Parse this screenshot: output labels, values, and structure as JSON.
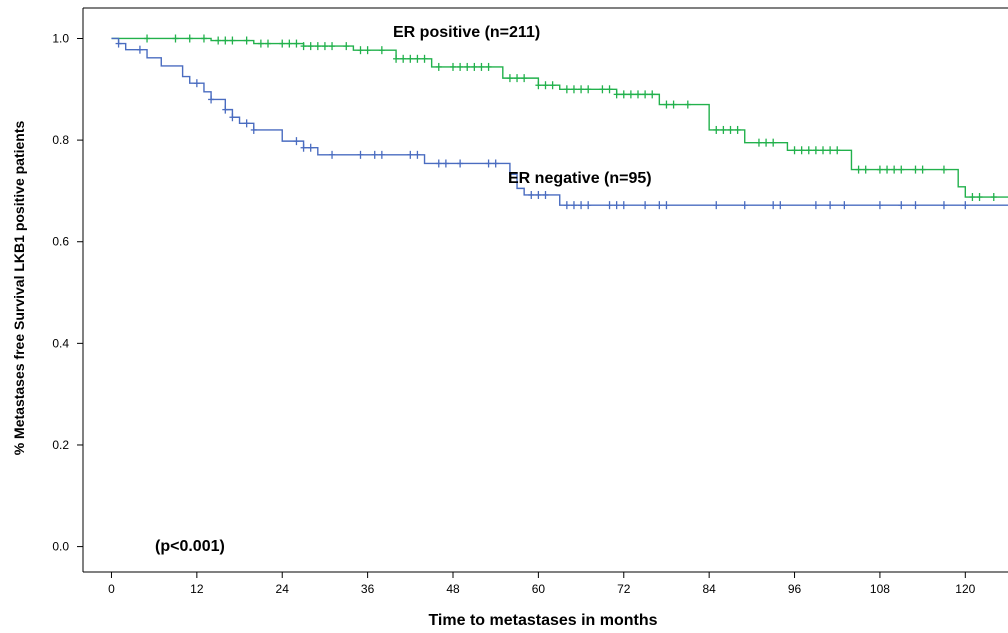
{
  "chart_data": {
    "type": "line",
    "xlabel": "Time to metastases in months",
    "ylabel": "% Metastases free Survival LKB1 positive patients",
    "xlim": [
      -4,
      126
    ],
    "ylim": [
      -0.05,
      1.06
    ],
    "xticks": [
      0,
      12,
      24,
      36,
      48,
      60,
      72,
      84,
      96,
      108,
      120
    ],
    "yticks": [
      0.0,
      0.2,
      0.4,
      0.6,
      0.8,
      1.0
    ],
    "ytick_labels": [
      "0.0",
      "0.2",
      "0.4",
      "0.6",
      "0.8",
      "1.0"
    ],
    "grid": false,
    "annotations": {
      "er_positive": "ER positive (n=211)",
      "er_negative": "ER negative (n=95)",
      "p_value": "(p<0.001)"
    },
    "series": [
      {
        "name": "ER positive (n=211)",
        "color": "#22b14c",
        "steps": [
          [
            0,
            1.0
          ],
          [
            14,
            0.996
          ],
          [
            20,
            0.99
          ],
          [
            27,
            0.985
          ],
          [
            34,
            0.977
          ],
          [
            40,
            0.96
          ],
          [
            45,
            0.944
          ],
          [
            55,
            0.922
          ],
          [
            60,
            0.908
          ],
          [
            63,
            0.9
          ],
          [
            71,
            0.89
          ],
          [
            77,
            0.87
          ],
          [
            84,
            0.82
          ],
          [
            89,
            0.795
          ],
          [
            95,
            0.78
          ],
          [
            104,
            0.742
          ],
          [
            119,
            0.708
          ],
          [
            120,
            0.688
          ],
          [
            126,
            0.688
          ]
        ],
        "censored": [
          5,
          9,
          11,
          13,
          15,
          16,
          17,
          19,
          21,
          22,
          24,
          25,
          26,
          27,
          28,
          29,
          30,
          31,
          33,
          35,
          36,
          38,
          40,
          41,
          42,
          43,
          44,
          46,
          48,
          49,
          50,
          51,
          52,
          53,
          56,
          57,
          58,
          60,
          61,
          62,
          64,
          65,
          66,
          67,
          69,
          70,
          71,
          72,
          73,
          74,
          75,
          76,
          78,
          79,
          81,
          85,
          86,
          87,
          88,
          91,
          92,
          93,
          96,
          97,
          98,
          99,
          100,
          101,
          102,
          105,
          106,
          108,
          109,
          110,
          111,
          113,
          114,
          117,
          121,
          122,
          124
        ]
      },
      {
        "name": "ER negative (n=95)",
        "color": "#4a6cc0",
        "steps": [
          [
            0,
            1.0
          ],
          [
            1,
            0.99
          ],
          [
            2,
            0.978
          ],
          [
            5,
            0.962
          ],
          [
            7,
            0.946
          ],
          [
            10,
            0.925
          ],
          [
            11,
            0.912
          ],
          [
            13,
            0.895
          ],
          [
            14,
            0.88
          ],
          [
            16,
            0.86
          ],
          [
            17,
            0.845
          ],
          [
            18,
            0.833
          ],
          [
            20,
            0.82
          ],
          [
            24,
            0.798
          ],
          [
            27,
            0.785
          ],
          [
            29,
            0.771
          ],
          [
            44,
            0.754
          ],
          [
            56,
            0.733
          ],
          [
            57,
            0.705
          ],
          [
            58,
            0.692
          ],
          [
            63,
            0.672
          ],
          [
            126,
            0.672
          ]
        ],
        "censored": [
          1,
          4,
          12,
          14,
          16,
          17,
          19,
          20,
          26,
          27,
          28,
          31,
          35,
          37,
          38,
          42,
          43,
          46,
          47,
          49,
          53,
          54,
          59,
          60,
          61,
          64,
          65,
          66,
          67,
          70,
          71,
          72,
          75,
          77,
          78,
          85,
          89,
          93,
          94,
          99,
          101,
          103,
          108,
          111,
          113,
          117,
          120
        ]
      }
    ]
  }
}
